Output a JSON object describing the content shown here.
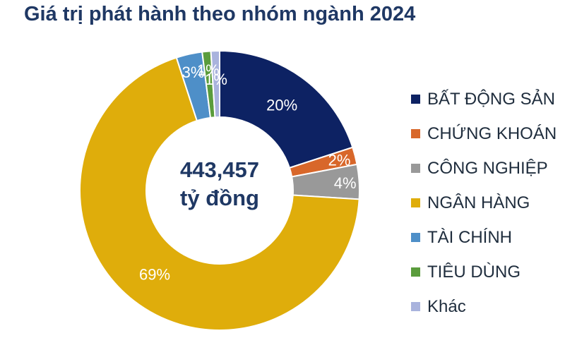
{
  "chart_data": {
    "type": "pie",
    "title": "Giá trị phát hành theo nhóm ngành 2024",
    "center_label": {
      "line1": "443,457",
      "line2": "tỷ đồng"
    },
    "categories": [
      "BẤT ĐỘNG SẢN",
      "CHỨNG KHOÁN",
      "CÔNG NGHIỆP",
      "NGÂN HÀNG",
      "TÀI CHÍNH",
      "TIÊU DÙNG",
      "Khác"
    ],
    "values": [
      20,
      2,
      4,
      69,
      3,
      1,
      1
    ],
    "data_labels": [
      "20%",
      "2%",
      "4%",
      "69%",
      "3%",
      "1%",
      "1%"
    ],
    "colors": [
      "#0d2263",
      "#d8672a",
      "#999999",
      "#dfad0b",
      "#4e8fc8",
      "#5a9c3c",
      "#a9b3dd"
    ],
    "legend_position": "right",
    "style": "donut"
  }
}
